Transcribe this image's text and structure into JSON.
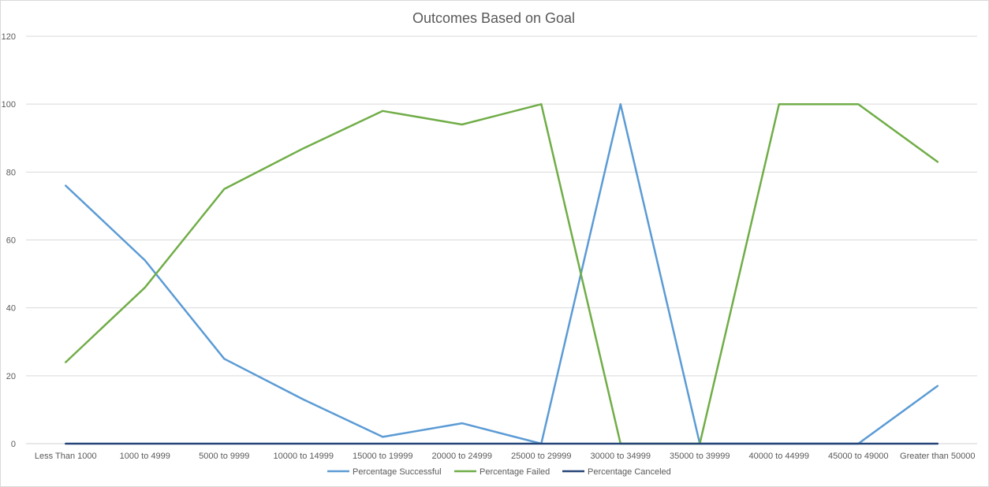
{
  "chart_data": {
    "type": "line",
    "title": "Outcomes Based on Goal",
    "xlabel": "",
    "ylabel": "",
    "categories": [
      "Less Than 1000",
      "1000 to 4999",
      "5000 to 9999",
      "10000 to 14999",
      "15000 to 19999",
      "20000 to 24999",
      "25000 to 29999",
      "30000 to 34999",
      "35000 to 39999",
      "40000 to 44999",
      "45000 to 49000",
      "Greater than 50000"
    ],
    "ylim": [
      0,
      120
    ],
    "yticks": [
      "0",
      "20",
      "40",
      "60",
      "80",
      "100",
      "120"
    ],
    "grid": true,
    "legend_position": "bottom",
    "series": [
      {
        "name": "Percentage Successful",
        "color": "#5b9bd5",
        "values": [
          76,
          54,
          25,
          13,
          2,
          6,
          0,
          100,
          0,
          0,
          0,
          17
        ]
      },
      {
        "name": "Percentage Failed",
        "color": "#70ad47",
        "values": [
          24,
          46,
          75,
          87,
          98,
          94,
          100,
          0,
          0,
          100,
          100,
          83
        ]
      },
      {
        "name": "Percentage Canceled",
        "color": "#264478",
        "values": [
          0,
          0,
          0,
          0,
          0,
          0,
          0,
          0,
          0,
          0,
          0,
          0
        ]
      }
    ]
  }
}
